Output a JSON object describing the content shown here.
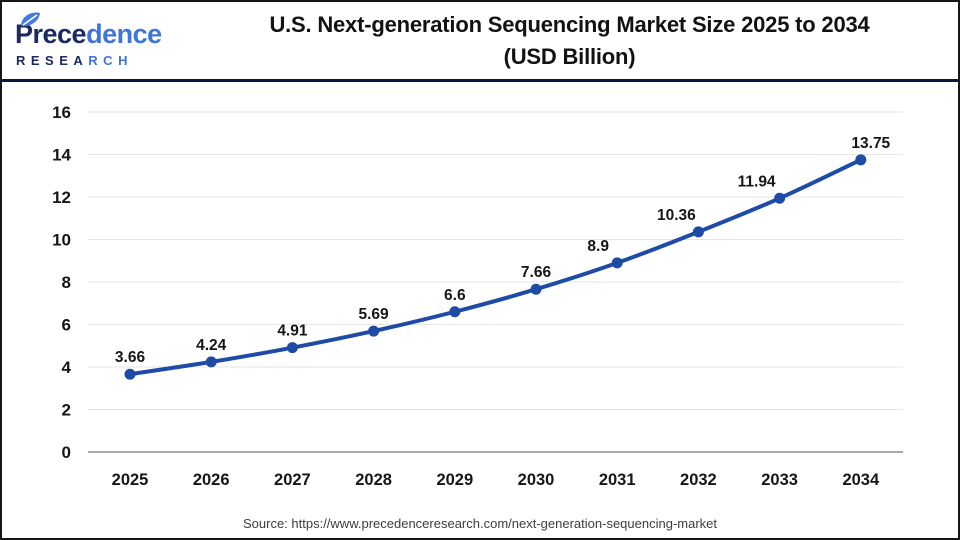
{
  "header": {
    "logo": {
      "brand_part_navy": "Prece",
      "brand_part_blue": "dence",
      "subtext_part_navy": "RESEA",
      "subtext_part_blue": "RCH"
    },
    "title_line1": "U.S. Next-generation Sequencing Market Size 2025 to 2034",
    "title_line2": "(USD Billion)"
  },
  "chart_data": {
    "type": "line",
    "title": "U.S. Next-generation Sequencing Market Size 2025 to 2034 (USD Billion)",
    "categories": [
      "2025",
      "2026",
      "2027",
      "2028",
      "2029",
      "2030",
      "2031",
      "2032",
      "2033",
      "2034"
    ],
    "values": [
      3.66,
      4.24,
      4.91,
      5.69,
      6.6,
      7.66,
      8.9,
      10.36,
      11.94,
      13.75
    ],
    "data_labels": [
      "3.66",
      "4.24",
      "4.91",
      "5.69",
      "6.6",
      "7.66",
      "8.9",
      "10.36",
      "11.94",
      "13.75"
    ],
    "xlabel": "",
    "ylabel": "",
    "ylim": [
      0,
      16
    ],
    "ytick_step": 2,
    "grid": true,
    "legend_position": "none",
    "line_color": "#1e4ba6",
    "marker": "circle"
  },
  "footer": {
    "source": "Source: https://www.precedenceresearch.com/next-generation-sequencing-market"
  },
  "colors": {
    "accent_line": "#1e4ba6",
    "brand_navy": "#121540",
    "brand_blue": "#3f75d8",
    "text": "#161616",
    "grid": "#e5e5e5",
    "axis": "#a9a9a9",
    "source_text": "#3d3d3d"
  }
}
